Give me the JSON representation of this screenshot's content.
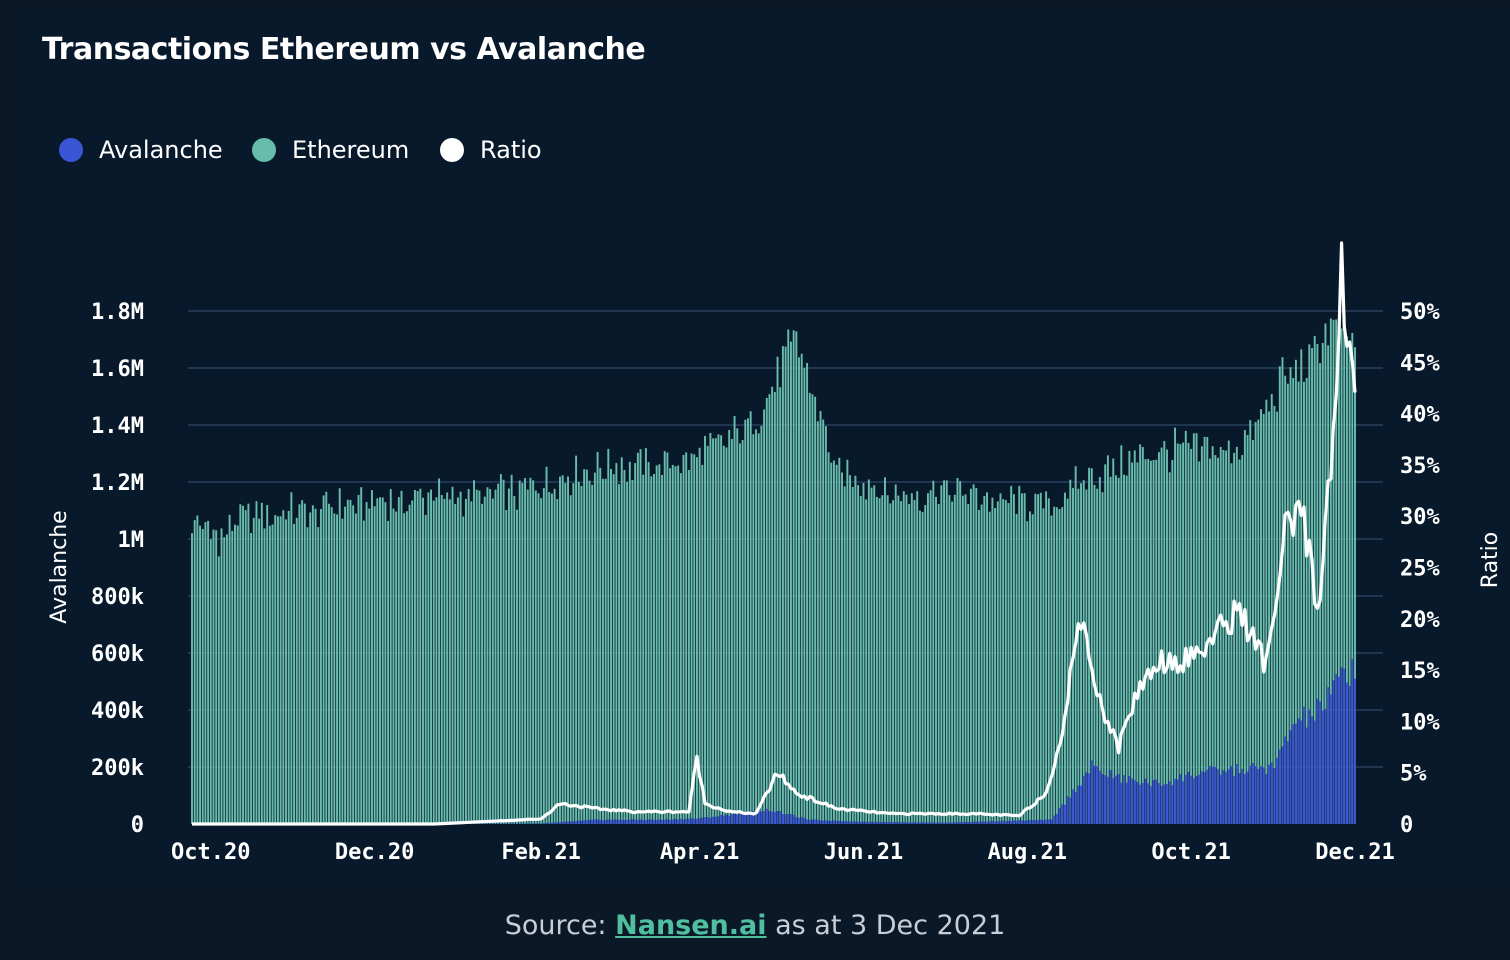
{
  "chart_data": {
    "type": "bar",
    "title": "Transactions Ethereum vs Avalanche",
    "ylabel": "Avalanche",
    "y2label": "Ratio",
    "ylim": [
      0,
      1800000
    ],
    "y2lim": [
      0,
      50
    ],
    "y_ticks": [
      0,
      200000,
      400000,
      600000,
      800000,
      1000000,
      1200000,
      1400000,
      1600000,
      1800000
    ],
    "y_tick_labels": [
      "0",
      "200k",
      "400k",
      "600k",
      "800k",
      "1M",
      "1.2M",
      "1.4M",
      "1.6M",
      "1.8M"
    ],
    "y2_ticks": [
      0,
      5,
      10,
      15,
      20,
      25,
      30,
      35,
      40,
      45,
      50
    ],
    "y2_tick_labels": [
      "0",
      "5%",
      "10%",
      "15%",
      "20%",
      "25%",
      "30%",
      "35%",
      "40%",
      "45%",
      "50%"
    ],
    "x_tick_labels": [
      "Oct.20",
      "Dec.20",
      "Feb.21",
      "Apr.21",
      "Jun.21",
      "Aug.21",
      "Oct.21",
      "Dec.21"
    ],
    "x_tick_days": [
      7,
      68,
      130,
      189,
      250,
      311,
      372,
      433
    ],
    "x_range_days": [
      0,
      433
    ],
    "grid": true,
    "legend_position": "top-left",
    "series": [
      {
        "name": "Avalanche",
        "kind": "bar",
        "axis": "left",
        "color": "#3a56d4",
        "anchors": [
          [
            0,
            0
          ],
          [
            80,
            0
          ],
          [
            130,
            2000
          ],
          [
            150,
            15000
          ],
          [
            175,
            15000
          ],
          [
            189,
            20000
          ],
          [
            215,
            50000
          ],
          [
            230,
            15000
          ],
          [
            250,
            8000
          ],
          [
            280,
            5000
          ],
          [
            320,
            15000
          ],
          [
            335,
            200000
          ],
          [
            345,
            160000
          ],
          [
            360,
            140000
          ],
          [
            375,
            180000
          ],
          [
            390,
            190000
          ],
          [
            403,
            200000
          ],
          [
            410,
            350000
          ],
          [
            420,
            400000
          ],
          [
            430,
            540000
          ],
          [
            433,
            550000
          ]
        ]
      },
      {
        "name": "Ethereum",
        "kind": "bar",
        "axis": "left",
        "color": "#68bcac",
        "anchors": [
          [
            0,
            1070000
          ],
          [
            10,
            1000000
          ],
          [
            20,
            1080000
          ],
          [
            40,
            1100000
          ],
          [
            60,
            1120000
          ],
          [
            80,
            1140000
          ],
          [
            100,
            1150000
          ],
          [
            120,
            1160000
          ],
          [
            140,
            1220000
          ],
          [
            160,
            1260000
          ],
          [
            175,
            1250000
          ],
          [
            190,
            1300000
          ],
          [
            205,
            1380000
          ],
          [
            210,
            1420000
          ],
          [
            225,
            1700000
          ],
          [
            235,
            1400000
          ],
          [
            240,
            1230000
          ],
          [
            250,
            1200000
          ],
          [
            265,
            1140000
          ],
          [
            280,
            1180000
          ],
          [
            300,
            1130000
          ],
          [
            320,
            1120000
          ],
          [
            332,
            1200000
          ],
          [
            345,
            1250000
          ],
          [
            355,
            1300000
          ],
          [
            370,
            1320000
          ],
          [
            385,
            1300000
          ],
          [
            395,
            1370000
          ],
          [
            405,
            1550000
          ],
          [
            415,
            1600000
          ],
          [
            423,
            1750000
          ],
          [
            433,
            1660000
          ]
        ]
      },
      {
        "name": "Ratio",
        "kind": "line",
        "axis": "right",
        "color": "#ffffff",
        "anchors": [
          [
            0,
            0
          ],
          [
            90,
            0
          ],
          [
            130,
            0.5
          ],
          [
            137,
            2
          ],
          [
            150,
            1.5
          ],
          [
            165,
            1.2
          ],
          [
            185,
            1.2
          ],
          [
            188,
            6.5
          ],
          [
            191,
            2
          ],
          [
            200,
            1.2
          ],
          [
            210,
            1
          ],
          [
            218,
            5
          ],
          [
            225,
            3
          ],
          [
            240,
            1.5
          ],
          [
            260,
            1
          ],
          [
            290,
            1
          ],
          [
            308,
            0.8
          ],
          [
            318,
            3
          ],
          [
            325,
            10
          ],
          [
            330,
            20.5
          ],
          [
            340,
            10.5
          ],
          [
            345,
            7.5
          ],
          [
            352,
            13
          ],
          [
            360,
            16
          ],
          [
            370,
            16
          ],
          [
            378,
            17.5
          ],
          [
            390,
            21
          ],
          [
            395,
            18
          ],
          [
            400,
            15.5
          ],
          [
            407,
            28
          ],
          [
            414,
            30
          ],
          [
            419,
            20
          ],
          [
            425,
            39
          ],
          [
            428,
            53
          ],
          [
            431,
            44
          ],
          [
            433,
            45
          ]
        ]
      }
    ]
  },
  "source": {
    "prefix": "Source: ",
    "link_text": "Nansen.ai",
    "suffix": " as at 3 Dec 2021"
  }
}
